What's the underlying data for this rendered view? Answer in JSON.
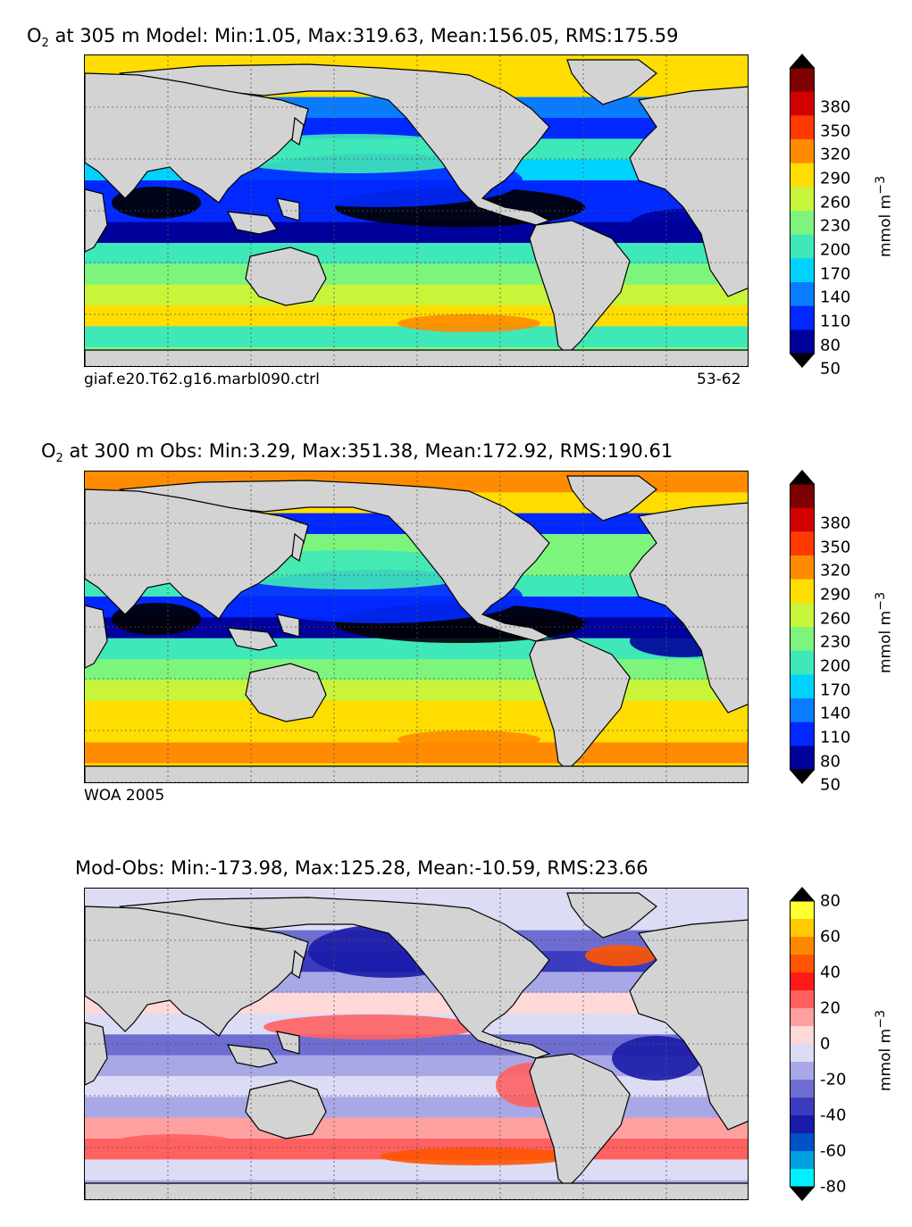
{
  "panels": [
    {
      "id": "model",
      "title_species": "O",
      "title_sub": "2",
      "title_rest": " at 305 m Model: Min:1.05, Max:319.63, Mean:156.05, RMS:175.59",
      "caption_left": "giaf.e20.T62.g16.marbl090.ctrl",
      "caption_right": "53-62",
      "colorbar": {
        "unit": "mmol m",
        "unit_sup": "−3",
        "ticks": [
          "380",
          "350",
          "320",
          "290",
          "260",
          "230",
          "200",
          "170",
          "140",
          "110",
          "80",
          "50"
        ],
        "colors": [
          "#7f0000",
          "#d40000",
          "#ff3a00",
          "#ff8c00",
          "#ffdd00",
          "#c8f53a",
          "#7df57d",
          "#3fe8b8",
          "#00d2ff",
          "#0a7cff",
          "#0028ff",
          "#00009a"
        ]
      }
    },
    {
      "id": "obs",
      "title_species": "O",
      "title_sub": "2",
      "title_rest": " at 300 m Obs: Min:3.29, Max:351.38, Mean:172.92, RMS:190.61",
      "caption_left": "WOA 2005",
      "caption_right": "",
      "colorbar": {
        "unit": "mmol m",
        "unit_sup": "−3",
        "ticks": [
          "380",
          "350",
          "320",
          "290",
          "260",
          "230",
          "200",
          "170",
          "140",
          "110",
          "80",
          "50"
        ],
        "colors": [
          "#7f0000",
          "#d40000",
          "#ff3a00",
          "#ff8c00",
          "#ffdd00",
          "#c8f53a",
          "#7df57d",
          "#3fe8b8",
          "#00d2ff",
          "#0a7cff",
          "#0028ff",
          "#00009a"
        ]
      }
    },
    {
      "id": "diff",
      "title_species": "",
      "title_sub": "",
      "title_rest": "Mod-Obs: Min:-173.98, Max:125.28, Mean:-10.59, RMS:23.66",
      "caption_left": "",
      "caption_right": "",
      "colorbar": {
        "unit": "mmol m",
        "unit_sup": "−3",
        "ticks": [
          "80",
          "60",
          "40",
          "20",
          "0",
          "-20",
          "-40",
          "-60",
          "-80"
        ],
        "colors": [
          "#ffff33",
          "#ffcc00",
          "#ff8800",
          "#ff5500",
          "#ff1a1a",
          "#ff6060",
          "#ffa0a0",
          "#ffd8d8",
          "#dcdcf5",
          "#a8a8e6",
          "#6e6ed2",
          "#3c3cc0",
          "#1a1aa8",
          "#0050c8",
          "#00a0e0",
          "#00f0ff"
        ]
      }
    }
  ]
}
